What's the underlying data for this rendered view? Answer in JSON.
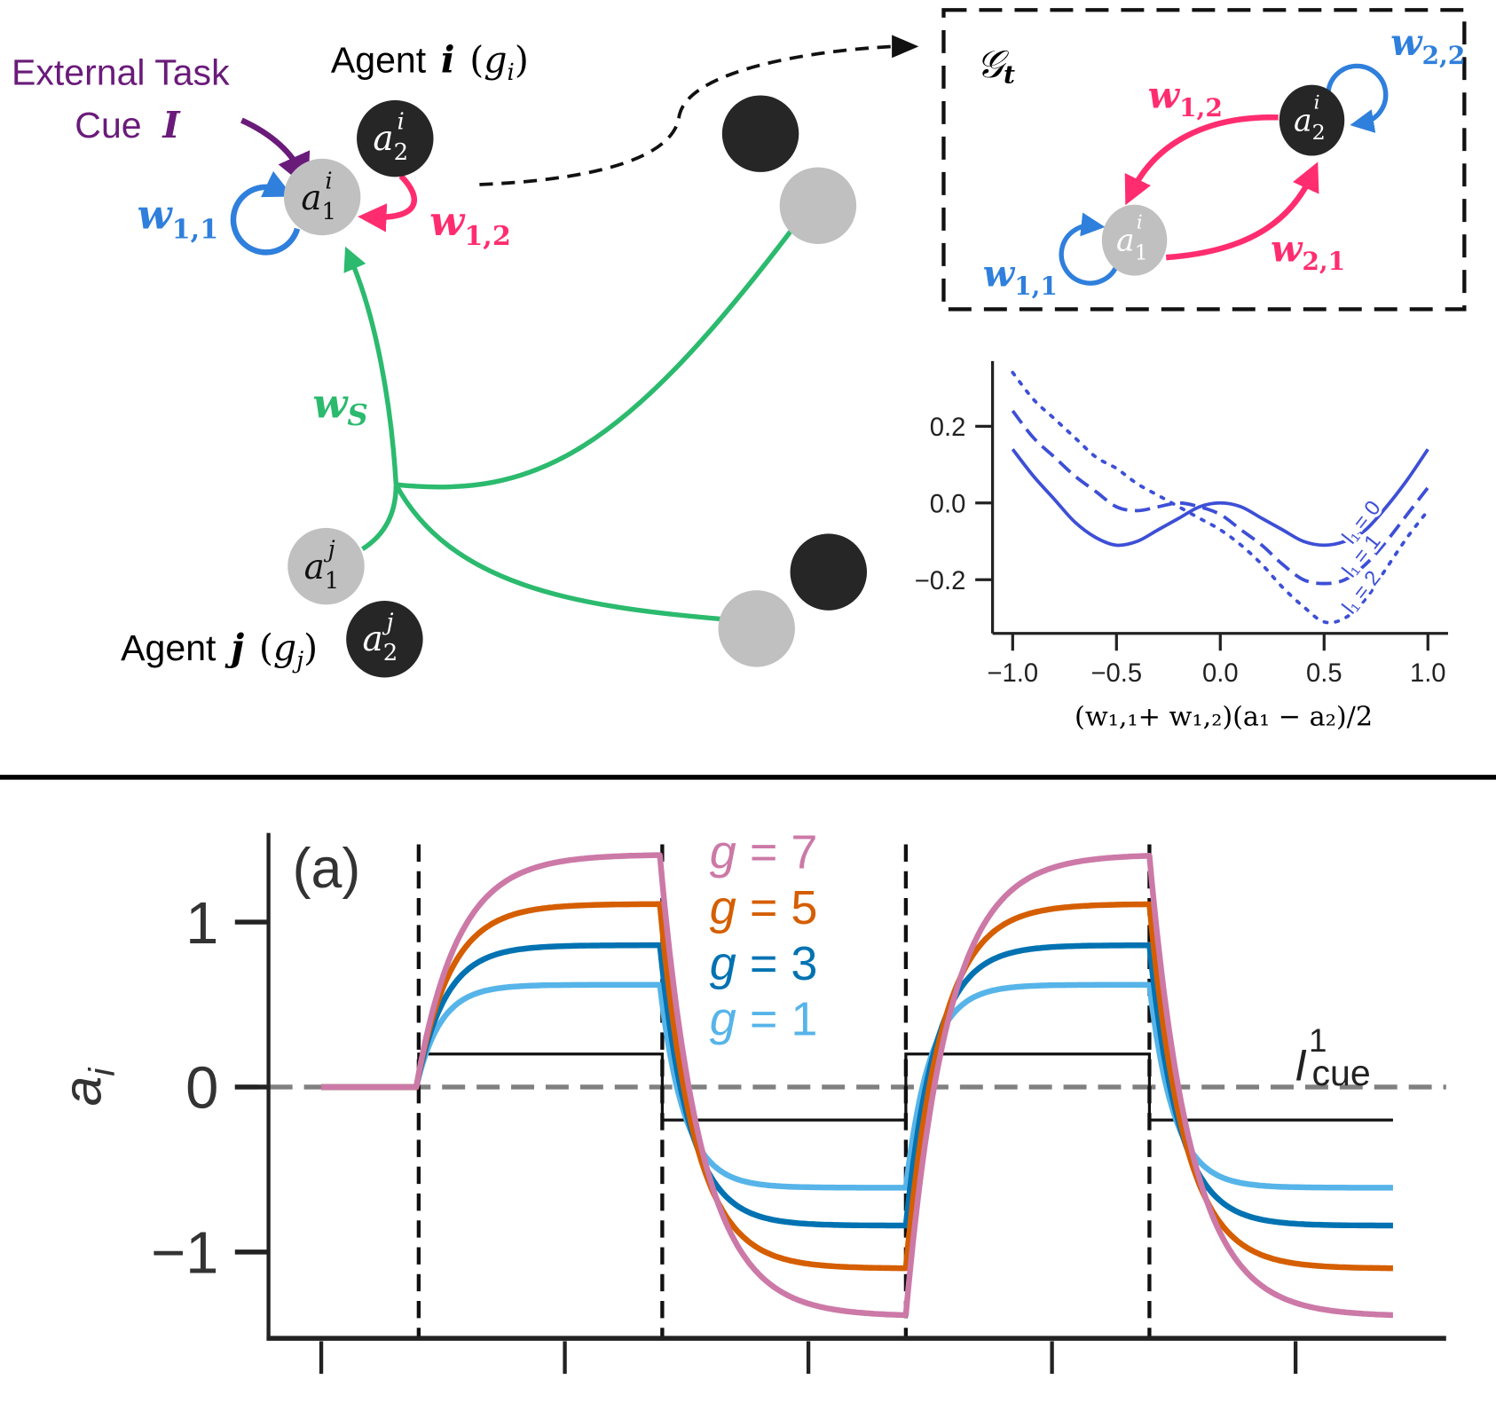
{
  "diagram": {
    "external_cue": {
      "line1": "External Task",
      "line2": "Cue",
      "symbol": "I",
      "color": "#6a1b7a"
    },
    "agent_i": {
      "label": "Agent",
      "index": "i",
      "gain": "g",
      "gain_sub": "i"
    },
    "agent_j": {
      "label": "Agent",
      "index": "j",
      "gain": "g",
      "gain_sub": "j"
    },
    "nodes": {
      "a1i": {
        "base": "a",
        "sub": "1",
        "sup": "i"
      },
      "a2i": {
        "base": "a",
        "sub": "2",
        "sup": "i"
      },
      "a1j": {
        "base": "a",
        "sub": "1",
        "sup": "j"
      },
      "a2j": {
        "base": "a",
        "sub": "2",
        "sup": "j"
      }
    },
    "weights": {
      "w11": {
        "base": "w",
        "sub": "1,1"
      },
      "w12": {
        "base": "w",
        "sub": "1,2"
      },
      "w21": {
        "base": "w",
        "sub": "2,1"
      },
      "w22": {
        "base": "w",
        "sub": "2,2"
      },
      "ws": {
        "base": "w",
        "sub": "S"
      }
    },
    "graph_box": {
      "title": "𝒢",
      "title_sub": "t"
    },
    "colors": {
      "self": "#2f7fdc",
      "cross": "#ff2d6f",
      "social": "#2bba6e",
      "node_light": "#c0c0c0",
      "node_dark": "#262626"
    }
  },
  "chart_data": [
    {
      "type": "line",
      "xlabel": "(w₁,₁+ w₁,₂)(a₁ − a₂)/2",
      "ylabel": "",
      "xlim": [
        -1.05,
        1.05
      ],
      "ylim": [
        -0.34,
        0.37
      ],
      "xticks": [
        "−1.0",
        "−0.5",
        "0.0",
        "0.5",
        "1.0"
      ],
      "xtick_values": [
        -1.0,
        -0.5,
        0.0,
        0.5,
        1.0
      ],
      "yticks": [
        "0.2",
        "0.0",
        "−0.2"
      ],
      "ytick_values": [
        0.2,
        0.0,
        -0.2
      ],
      "color": "#3d4fd6",
      "x": [
        -1.0,
        -0.9,
        -0.8,
        -0.7,
        -0.6,
        -0.5,
        -0.4,
        -0.3,
        -0.2,
        -0.1,
        0.0,
        0.1,
        0.2,
        0.3,
        0.4,
        0.5,
        0.6,
        0.7,
        0.8,
        0.9,
        1.0
      ],
      "series": [
        {
          "name": "l₁ = 0",
          "style": "solid",
          "values": [
            0.14,
            0.07,
            0.01,
            -0.05,
            -0.09,
            -0.11,
            -0.1,
            -0.07,
            -0.04,
            -0.01,
            0.0,
            -0.01,
            -0.04,
            -0.07,
            -0.1,
            -0.11,
            -0.1,
            -0.07,
            -0.01,
            0.06,
            0.14
          ]
        },
        {
          "name": "l₁ = 1",
          "style": "dashed",
          "values": [
            0.24,
            0.17,
            0.12,
            0.07,
            0.03,
            -0.01,
            -0.02,
            -0.01,
            0.0,
            -0.01,
            -0.03,
            -0.07,
            -0.11,
            -0.16,
            -0.2,
            -0.21,
            -0.2,
            -0.16,
            -0.1,
            -0.03,
            0.04
          ]
        },
        {
          "name": "l₁ = 2",
          "style": "dotted",
          "values": [
            0.34,
            0.27,
            0.22,
            0.17,
            0.12,
            0.09,
            0.05,
            0.02,
            -0.01,
            -0.04,
            -0.07,
            -0.11,
            -0.16,
            -0.22,
            -0.27,
            -0.31,
            -0.3,
            -0.25,
            -0.17,
            -0.09,
            -0.02
          ]
        }
      ]
    },
    {
      "type": "line",
      "panel_label": "(a)",
      "ylabel": "a",
      "ylabel_sub": "i",
      "xlabel": "",
      "ylim": [
        -1.53,
        1.53
      ],
      "yticks": [
        "1",
        "0",
        "−1"
      ],
      "ytick_values": [
        1,
        0,
        -1
      ],
      "xtick_values": [
        0,
        1,
        2,
        3,
        4
      ],
      "xlim": [
        -0.22,
        4.62
      ],
      "t_end": 4.4,
      "cue_switch_times": [
        0.4,
        1.4,
        2.4,
        3.4
      ],
      "cue": {
        "name": "I",
        "sup": "1",
        "sub": "cue",
        "levels": [
          0,
          0.2,
          -0.2,
          0.2,
          -0.2
        ],
        "color": "#111111"
      },
      "zero_line_color": "#808080",
      "series": [
        {
          "name": "g = 7",
          "g": "7",
          "color": "#cc79a7",
          "high": 1.41,
          "low": -1.39
        },
        {
          "name": "g = 5",
          "g": "5",
          "color": "#d55e00",
          "high": 1.11,
          "low": -1.1
        },
        {
          "name": "g = 3",
          "g": "3",
          "color": "#0072b2",
          "high": 0.86,
          "low": -0.84
        },
        {
          "name": "g = 1",
          "g": "1",
          "color": "#56b4e9",
          "high": 0.62,
          "low": -0.61
        }
      ]
    }
  ]
}
